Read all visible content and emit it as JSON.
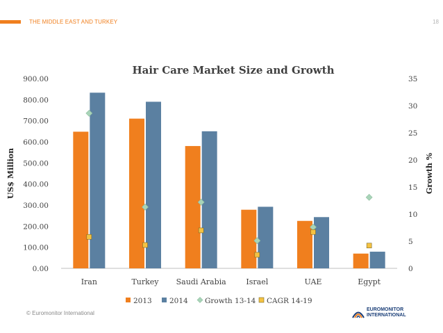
{
  "header": {
    "section_title": "THE MIDDLE EAST AND TURKEY",
    "page_number": "18"
  },
  "footer": {
    "copyright": "© Euromonitor International",
    "brand_line1": "EUROMONITOR",
    "brand_line2": "INTERNATIONAL"
  },
  "colors": {
    "accent": "#f07f1e",
    "bar_2013": "#f07f1e",
    "bar_2014": "#5b80a1",
    "growth_marker": "#a9d4b9",
    "cagr_marker": "#f5c242",
    "brand_blue": "#1b3f78"
  },
  "chart_data": {
    "type": "bar",
    "title": "Hair Care Market Size and Growth",
    "ylabel": "US$ Million",
    "y2label": "Growth %",
    "categories": [
      "Iran",
      "Turkey",
      "Saudi Arabia",
      "Israel",
      "UAE",
      "Egypt"
    ],
    "ylim": [
      0,
      900
    ],
    "y2lim": [
      0,
      35
    ],
    "yticks": [
      "0.00",
      "100.00",
      "200.00",
      "300.00",
      "400.00",
      "500.00",
      "600.00",
      "700.00",
      "800.00",
      "900.00"
    ],
    "y2ticks": [
      "0",
      "5",
      "10",
      "15",
      "20",
      "25",
      "30",
      "35"
    ],
    "series": [
      {
        "name": "2013",
        "kind": "bar",
        "axis": "left",
        "values": [
          648,
          710,
          580,
          278,
          225,
          70
        ]
      },
      {
        "name": "2014",
        "kind": "bar",
        "axis": "left",
        "values": [
          833,
          790,
          650,
          292,
          243,
          79
        ]
      },
      {
        "name": "Growth 13-14",
        "kind": "marker",
        "shape": "diamond",
        "axis": "right",
        "values": [
          28.6,
          11.3,
          12.2,
          5.1,
          7.6,
          13.1
        ]
      },
      {
        "name": "CAGR 14-19",
        "kind": "marker",
        "shape": "square",
        "axis": "right",
        "values": [
          5.8,
          4.3,
          7.0,
          2.5,
          6.7,
          4.2
        ]
      }
    ],
    "legend_position": "bottom",
    "grid": false
  }
}
